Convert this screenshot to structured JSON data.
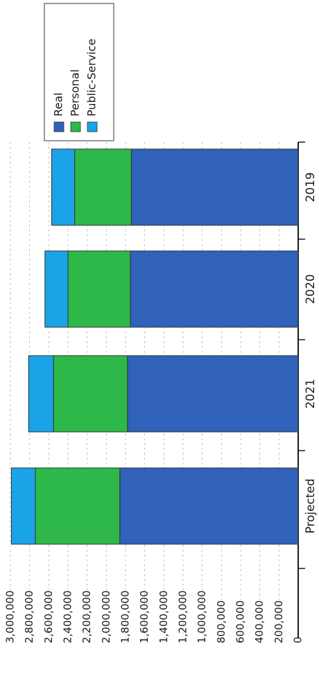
{
  "chart_data": {
    "type": "bar",
    "stacked": true,
    "orientation": "horizontal (image rotated)",
    "categories": [
      "Projected",
      "2021",
      "2020",
      "2019"
    ],
    "series": [
      {
        "name": "Real",
        "color": "#2f62b8",
        "values": [
          1860000,
          1780000,
          1750000,
          1740000
        ]
      },
      {
        "name": "Personal",
        "color": "#2fb84a",
        "values": [
          880000,
          770000,
          650000,
          590000
        ]
      },
      {
        "name": "Public-Service",
        "color": "#1aa3e6",
        "values": [
          250000,
          260000,
          240000,
          240000
        ]
      }
    ],
    "xlim": [
      0,
      3000000
    ],
    "ticks": [
      "0",
      "200,000",
      "400,000",
      "600,000",
      "800,000",
      "1,000,000",
      "1,200,000",
      "1,400,000",
      "1,600,000",
      "1,800,000",
      "2,000,000",
      "2,200,000",
      "2,400,000",
      "2,600,000",
      "2,800,000",
      "3,000,000"
    ],
    "grid": true,
    "legend_position": "top-right"
  }
}
